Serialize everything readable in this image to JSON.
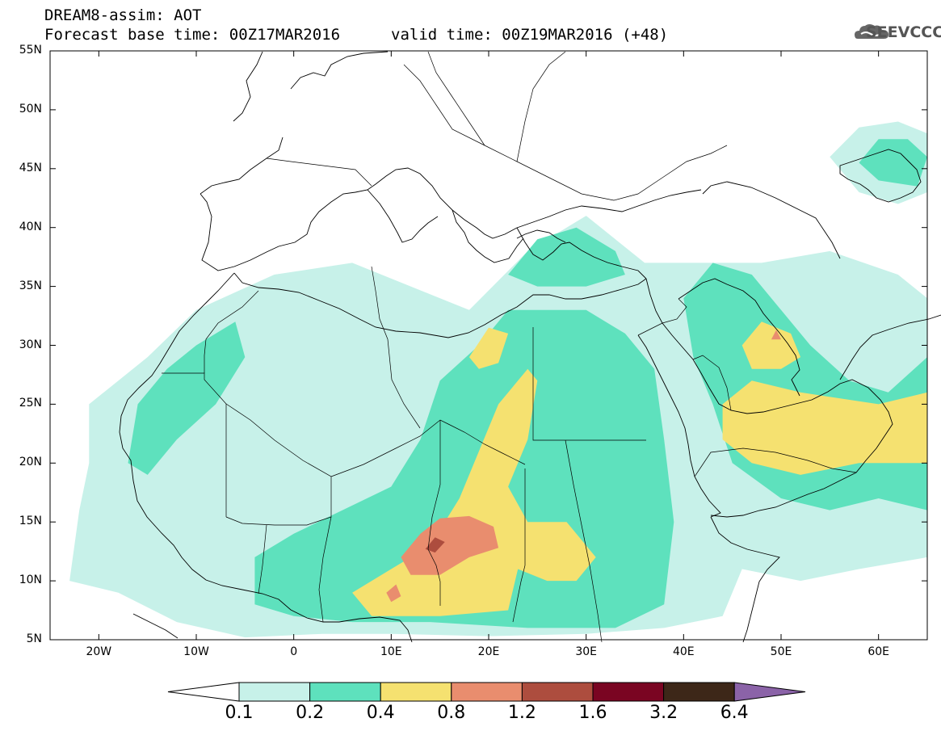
{
  "header": {
    "title": "DREAM8-assim: AOT",
    "base_time": "Forecast base time: 00Z17MAR2016",
    "valid_time": "valid time: 00Z19MAR2016 (+48)"
  },
  "logo": {
    "text": "SEEVCCC",
    "icon": "cloud-icon"
  },
  "map": {
    "projection": "lat-lon",
    "lon_range": [
      -25,
      65
    ],
    "lat_range": [
      5,
      55
    ],
    "lat_ticks": [
      {
        "value": 55,
        "label": "55N"
      },
      {
        "value": 50,
        "label": "50N"
      },
      {
        "value": 45,
        "label": "45N"
      },
      {
        "value": 40,
        "label": "40N"
      },
      {
        "value": 35,
        "label": "35N"
      },
      {
        "value": 30,
        "label": "30N"
      },
      {
        "value": 25,
        "label": "25N"
      },
      {
        "value": 20,
        "label": "20N"
      },
      {
        "value": 15,
        "label": "15N"
      },
      {
        "value": 10,
        "label": "10N"
      },
      {
        "value": 5,
        "label": "5N"
      }
    ],
    "lon_ticks": [
      {
        "value": -20,
        "label": "20W"
      },
      {
        "value": -10,
        "label": "10W"
      },
      {
        "value": 0,
        "label": "0"
      },
      {
        "value": 10,
        "label": "10E"
      },
      {
        "value": 20,
        "label": "20E"
      },
      {
        "value": 30,
        "label": "30E"
      },
      {
        "value": 40,
        "label": "40E"
      },
      {
        "value": 50,
        "label": "50E"
      },
      {
        "value": 60,
        "label": "60E"
      }
    ],
    "aot_regions": [
      {
        "level": 0,
        "points": [
          [
            -21,
            25
          ],
          [
            -15,
            29
          ],
          [
            -10,
            33
          ],
          [
            -2,
            36
          ],
          [
            6,
            37
          ],
          [
            12,
            35
          ],
          [
            18,
            33
          ],
          [
            24,
            38
          ],
          [
            30,
            41
          ],
          [
            36,
            37
          ],
          [
            42,
            37
          ],
          [
            48,
            37
          ],
          [
            55,
            38
          ],
          [
            62,
            36
          ],
          [
            65,
            34
          ],
          [
            65,
            12
          ],
          [
            58,
            11
          ],
          [
            52,
            10
          ],
          [
            46,
            11
          ],
          [
            44,
            7
          ],
          [
            38,
            6
          ],
          [
            30,
            5.5
          ],
          [
            20,
            5.3
          ],
          [
            10,
            5.5
          ],
          [
            3,
            5.5
          ],
          [
            -5,
            5.2
          ],
          [
            -12,
            6.5
          ],
          [
            -18,
            9
          ],
          [
            -23,
            10
          ],
          [
            -22,
            16
          ],
          [
            -21,
            20
          ]
        ]
      },
      {
        "level": 0,
        "points": [
          [
            55,
            46
          ],
          [
            58,
            48.5
          ],
          [
            62,
            49
          ],
          [
            65,
            48
          ],
          [
            65,
            43
          ],
          [
            62,
            42
          ],
          [
            58,
            43
          ]
        ]
      },
      {
        "level": 1,
        "points": [
          [
            -17,
            20
          ],
          [
            -16,
            25
          ],
          [
            -13,
            28
          ],
          [
            -10,
            30
          ],
          [
            -6,
            32
          ],
          [
            -5,
            29
          ],
          [
            -8,
            25
          ],
          [
            -12,
            22
          ],
          [
            -15,
            19
          ]
        ]
      },
      {
        "level": 1,
        "points": [
          [
            -4,
            12
          ],
          [
            0,
            14
          ],
          [
            5,
            16
          ],
          [
            10,
            18
          ],
          [
            13,
            22
          ],
          [
            15,
            27
          ],
          [
            19,
            30
          ],
          [
            22,
            33
          ],
          [
            26,
            33
          ],
          [
            30,
            33
          ],
          [
            34,
            31
          ],
          [
            37,
            28
          ],
          [
            38,
            22
          ],
          [
            39,
            15
          ],
          [
            38,
            8
          ],
          [
            33,
            6
          ],
          [
            24,
            6
          ],
          [
            14,
            6.5
          ],
          [
            6,
            6.5
          ],
          [
            0,
            7
          ],
          [
            -4,
            8
          ]
        ]
      },
      {
        "level": 1,
        "points": [
          [
            22,
            36
          ],
          [
            25,
            39
          ],
          [
            29,
            40
          ],
          [
            33,
            38
          ],
          [
            34,
            36
          ],
          [
            30,
            35
          ],
          [
            25,
            35
          ]
        ]
      },
      {
        "level": 1,
        "points": [
          [
            40,
            34
          ],
          [
            43,
            37
          ],
          [
            47,
            36
          ],
          [
            50,
            33
          ],
          [
            53,
            30
          ],
          [
            57,
            27
          ],
          [
            61,
            26
          ],
          [
            65,
            29
          ],
          [
            65,
            16
          ],
          [
            60,
            17
          ],
          [
            55,
            16
          ],
          [
            50,
            17
          ],
          [
            45,
            20
          ],
          [
            43,
            25
          ],
          [
            41,
            29
          ]
        ]
      },
      {
        "level": 1,
        "points": [
          [
            58,
            45.5
          ],
          [
            60,
            47.5
          ],
          [
            63,
            47.5
          ],
          [
            65,
            46
          ],
          [
            64,
            43.5
          ],
          [
            60,
            44
          ]
        ]
      },
      {
        "level": 2,
        "points": [
          [
            6,
            9
          ],
          [
            10,
            11
          ],
          [
            14,
            13
          ],
          [
            17,
            17
          ],
          [
            19,
            21
          ],
          [
            21,
            25
          ],
          [
            24,
            28
          ],
          [
            25,
            27
          ],
          [
            24,
            22
          ],
          [
            22,
            18
          ],
          [
            24,
            15
          ],
          [
            28,
            15
          ],
          [
            31,
            12
          ],
          [
            29,
            10
          ],
          [
            26,
            10
          ],
          [
            23,
            11
          ],
          [
            22,
            7.5
          ],
          [
            15,
            7
          ],
          [
            8,
            7
          ]
        ]
      },
      {
        "level": 2,
        "points": [
          [
            18,
            29
          ],
          [
            20,
            31.5
          ],
          [
            22,
            31
          ],
          [
            21,
            28.5
          ],
          [
            19,
            28
          ]
        ]
      },
      {
        "level": 2,
        "points": [
          [
            44,
            25
          ],
          [
            47,
            27
          ],
          [
            52,
            26
          ],
          [
            56,
            25.5
          ],
          [
            60,
            25
          ],
          [
            65,
            26
          ],
          [
            65,
            20
          ],
          [
            58,
            20
          ],
          [
            52,
            19
          ],
          [
            47,
            20
          ],
          [
            44,
            22
          ]
        ]
      },
      {
        "level": 2,
        "points": [
          [
            46,
            30
          ],
          [
            48,
            32
          ],
          [
            51,
            31
          ],
          [
            52,
            29
          ],
          [
            50,
            28
          ],
          [
            47,
            28
          ]
        ]
      },
      {
        "level": 3,
        "points": [
          [
            11,
            12
          ],
          [
            13,
            14
          ],
          [
            15,
            15.3
          ],
          [
            18,
            15.5
          ],
          [
            20.5,
            14.6
          ],
          [
            21,
            12.8
          ],
          [
            18,
            12
          ],
          [
            15,
            10.5
          ],
          [
            12,
            10.5
          ]
        ]
      },
      {
        "level": 3,
        "points": [
          [
            9.5,
            9
          ],
          [
            10.5,
            9.7
          ],
          [
            11,
            8.7
          ],
          [
            10,
            8.2
          ]
        ]
      },
      {
        "level": 3,
        "points": [
          [
            49,
            30.5
          ],
          [
            49.5,
            31.3
          ],
          [
            50,
            30.5
          ]
        ]
      },
      {
        "level": 4,
        "points": [
          [
            13.5,
            12.7
          ],
          [
            14.5,
            13.7
          ],
          [
            15.5,
            13.3
          ],
          [
            14.5,
            12.4
          ]
        ]
      }
    ]
  },
  "colorbar": {
    "colors": [
      "#ffffff",
      "#c7f1e9",
      "#5ee1bd",
      "#f5e170",
      "#e98d6e",
      "#ad4d3e",
      "#7a0522",
      "#3d2718",
      "#8b63a8"
    ],
    "tick_labels": [
      "0.1",
      "0.2",
      "0.4",
      "0.8",
      "1.2",
      "1.6",
      "3.2",
      "6.4"
    ]
  }
}
